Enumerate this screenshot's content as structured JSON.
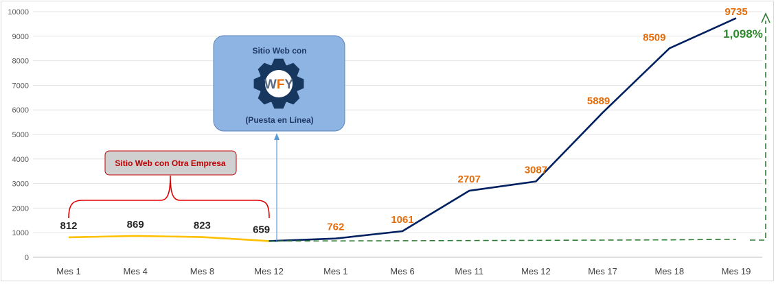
{
  "chart_data": {
    "type": "line",
    "ylim": [
      0,
      10000
    ],
    "yticks": [
      0,
      1000,
      2000,
      3000,
      4000,
      5000,
      6000,
      7000,
      8000,
      9000,
      10000
    ],
    "categories": [
      "Mes 1",
      "Mes 4",
      "Mes 8",
      "Mes 12",
      "Mes 1",
      "Mes 6",
      "Mes 11",
      "Mes 12",
      "Mes 17",
      "Mes 18",
      "Mes 19"
    ],
    "series": [
      {
        "values": [
          812,
          869,
          823,
          659,
          null,
          null,
          null,
          null,
          null,
          null,
          null
        ],
        "color": "#ffc000"
      },
      {
        "values": [
          null,
          null,
          null,
          659,
          762,
          1061,
          2707,
          3087,
          5889,
          8509,
          9735
        ],
        "color": "#002060"
      },
      {
        "values": [
          null,
          null,
          null,
          659,
          665,
          672,
          680,
          688,
          698,
          708,
          730
        ],
        "color": "#2e7d32",
        "style": "dashed"
      }
    ],
    "data_labels": [
      {
        "index": 0,
        "text": "812"
      },
      {
        "index": 1,
        "text": "869"
      },
      {
        "index": 2,
        "text": "823"
      },
      {
        "index": 3,
        "text": "659"
      },
      {
        "index": 4,
        "text": "762"
      },
      {
        "index": 5,
        "text": "1061"
      },
      {
        "index": 6,
        "text": "2707"
      },
      {
        "index": 7,
        "text": "3087"
      },
      {
        "index": 8,
        "text": "5889"
      },
      {
        "index": 9,
        "text": "8509"
      },
      {
        "index": 10,
        "text": "9735"
      }
    ],
    "annotations": {
      "growth": "1,098%",
      "website_box_line1": "Sitio Web con",
      "website_box_line2": "(Puesta en Línea)",
      "logo_text": "WFY",
      "other_company": "Sitio Web con Otra Empresa"
    },
    "colors": {
      "before_label": "#262626",
      "after_label": "#e46c0a",
      "growth": "#2f8a2f",
      "website_box": "#8eb4e3",
      "logo": "#17375e",
      "bracket": "#e00000"
    }
  }
}
